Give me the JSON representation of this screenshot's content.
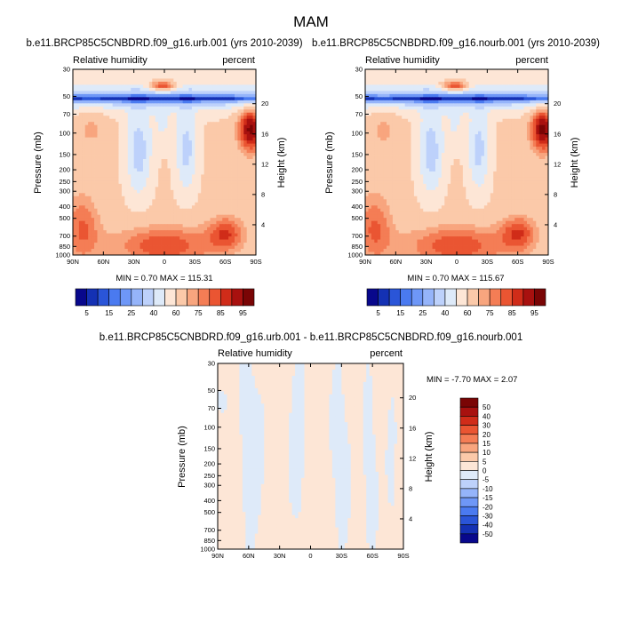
{
  "main_title": "MAM",
  "chart_data": [
    {
      "type": "heatmap",
      "id": "urb",
      "title": "b.e11.BRCP85C5CNBDRD.f09_g16.urb.001 (yrs 2010-2039)",
      "left_label": "Relative humidity",
      "right_label": "percent",
      "xlabel": "",
      "ylabel": "Pressure (mb)",
      "ylabel_right": "Height (km)",
      "x_ticks": [
        "90N",
        "60N",
        "30N",
        "0",
        "30S",
        "60S",
        "90S"
      ],
      "x_tick_values": [
        90,
        60,
        30,
        0,
        -30,
        -60,
        -90
      ],
      "xlim": [
        90,
        -90
      ],
      "y_ticks": [
        "30",
        "50",
        "70",
        "100",
        "150",
        "200",
        "250",
        "300",
        "400",
        "500",
        "700",
        "850",
        "1000"
      ],
      "y_tick_values": [
        30,
        50,
        70,
        100,
        150,
        200,
        250,
        300,
        400,
        500,
        700,
        850,
        1000
      ],
      "ylim": [
        1000,
        30
      ],
      "y_right_ticks": [
        "4",
        "8",
        "12",
        "16",
        "20"
      ],
      "y_right_values": [
        4,
        8,
        12,
        16,
        20
      ],
      "stats": "MIN =   0.70  MAX = 115.31",
      "min": 0.7,
      "max": 115.31
    },
    {
      "type": "heatmap",
      "id": "nourb",
      "title": "b.e11.BRCP85C5CNBDRD.f09_g16.nourb.001 (yrs 2010-2039)",
      "left_label": "Relative humidity",
      "right_label": "percent",
      "xlabel": "",
      "ylabel": "Pressure (mb)",
      "ylabel_right": "Height (km)",
      "x_ticks": [
        "90N",
        "60N",
        "30N",
        "0",
        "30S",
        "60S",
        "90S"
      ],
      "x_tick_values": [
        90,
        60,
        30,
        0,
        -30,
        -60,
        -90
      ],
      "xlim": [
        90,
        -90
      ],
      "y_ticks": [
        "30",
        "50",
        "70",
        "100",
        "150",
        "200",
        "250",
        "300",
        "400",
        "500",
        "700",
        "850",
        "1000"
      ],
      "y_tick_values": [
        30,
        50,
        70,
        100,
        150,
        200,
        250,
        300,
        400,
        500,
        700,
        850,
        1000
      ],
      "ylim": [
        1000,
        30
      ],
      "y_right_ticks": [
        "4",
        "8",
        "12",
        "16",
        "20"
      ],
      "y_right_values": [
        4,
        8,
        12,
        16,
        20
      ],
      "stats": "MIN =   0.70  MAX = 115.67",
      "min": 0.7,
      "max": 115.67
    },
    {
      "type": "heatmap",
      "id": "diff",
      "title": "b.e11.BRCP85C5CNBDRD.f09_g16.urb.001 - b.e11.BRCP85C5CNBDRD.f09_g16.nourb.001",
      "left_label": "Relative humidity",
      "right_label": "percent",
      "xlabel": "",
      "ylabel": "Pressure (mb)",
      "ylabel_right": "Height (km)",
      "x_ticks": [
        "90N",
        "60N",
        "30N",
        "0",
        "30S",
        "60S",
        "90S"
      ],
      "x_tick_values": [
        90,
        60,
        30,
        0,
        -30,
        -60,
        -90
      ],
      "xlim": [
        90,
        -90
      ],
      "y_ticks": [
        "30",
        "50",
        "70",
        "100",
        "150",
        "200",
        "250",
        "300",
        "400",
        "500",
        "700",
        "850",
        "1000"
      ],
      "y_tick_values": [
        30,
        50,
        70,
        100,
        150,
        200,
        250,
        300,
        400,
        500,
        700,
        850,
        1000
      ],
      "ylim": [
        1000,
        30
      ],
      "y_right_ticks": [
        "4",
        "8",
        "12",
        "16",
        "20"
      ],
      "y_right_values": [
        4,
        8,
        12,
        16,
        20
      ],
      "stats": "MIN = -7.70  MAX =   2.07",
      "min": -7.7,
      "max": 2.07
    }
  ],
  "colorbar_top": {
    "labels": [
      "5",
      "15",
      "25",
      "40",
      "60",
      "75",
      "85",
      "95"
    ],
    "levels": [
      5,
      10,
      15,
      20,
      25,
      30,
      40,
      50,
      60,
      70,
      75,
      80,
      85,
      90,
      95
    ],
    "colors": [
      "#08088c",
      "#1431b4",
      "#2a55d8",
      "#4a7af0",
      "#6e97f7",
      "#95b4fa",
      "#bdd1fb",
      "#deeaf9",
      "#fde6d6",
      "#fbc9a9",
      "#f8a57e",
      "#f47d55",
      "#ea5532",
      "#d02c19",
      "#a8110f",
      "#7a0505"
    ]
  },
  "colorbar_diff": {
    "labels": [
      "50",
      "40",
      "30",
      "20",
      "15",
      "10",
      "5",
      "0",
      "-5",
      "-10",
      "-15",
      "-20",
      "-30",
      "-40",
      "-50"
    ],
    "levels": [
      50,
      40,
      30,
      20,
      15,
      10,
      5,
      0,
      -5,
      -10,
      -15,
      -20,
      -30,
      -40,
      -50
    ],
    "colors": [
      "#7a0505",
      "#a8110f",
      "#d02c19",
      "#ea5532",
      "#f47d55",
      "#f8a57e",
      "#fbc9a9",
      "#fde6d6",
      "#deeaf9",
      "#bdd1fb",
      "#95b4fa",
      "#6e97f7",
      "#4a7af0",
      "#2a55d8",
      "#1431b4",
      "#08088c"
    ]
  }
}
